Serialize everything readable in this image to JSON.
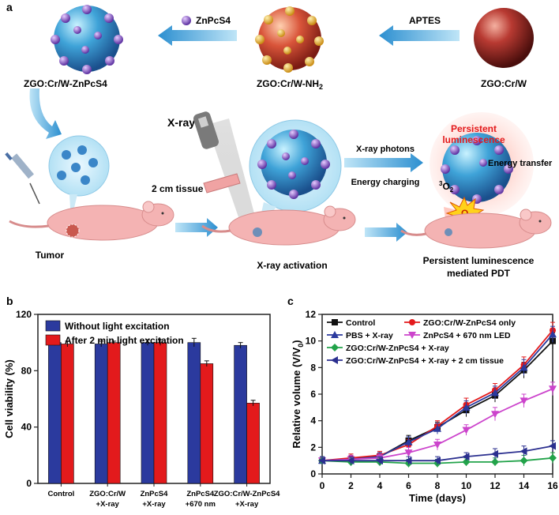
{
  "panel_a": {
    "label": "a",
    "zgo_crw": "ZGO:Cr/W",
    "zgo_nh2": "ZGO:Cr/W-NH",
    "nh2_sub": "2",
    "zgo_znpcs4": "ZGO:Cr/W-ZnPcS4",
    "aptes": "APTES",
    "znpcs4": "ZnPcS4",
    "xray": "X-ray",
    "tissue": "2 cm tissue",
    "xray_photons": "X-ray photons",
    "energy_charging": "Energy charging",
    "persistent_line1": "Persistent",
    "persistent_line2": "luminescence",
    "energy_transfer": "Energy transfer",
    "o2_triplet_sup": "3",
    "o2_triplet": "O",
    "o2_triplet_sub": "2",
    "o2_singlet": "O",
    "o2_singlet_sub": "2",
    "tumor": "Tumor",
    "xray_activation": "X-ray activation",
    "pdt_line1": "Persistent luminescence",
    "pdt_line2": "mediated PDT"
  },
  "chart_data": [
    {
      "panel": "b",
      "type": "bar",
      "ylabel": "Cell viability (%)",
      "ylim": [
        0,
        120
      ],
      "yticks": [
        0,
        40,
        80,
        120
      ],
      "categories": [
        [
          "Control"
        ],
        [
          "ZGO:Cr/W",
          "+X-ray"
        ],
        [
          "ZnPcS4",
          "+X-ray"
        ],
        [
          "ZnPcS4",
          "+670 nm"
        ],
        [
          "ZGO:Cr/W-ZnPcS4",
          "+X-ray"
        ]
      ],
      "series": [
        {
          "name": "Without light excitation",
          "color": "#2b3a9e",
          "values": [
            100,
            99,
            100,
            100,
            98
          ],
          "errors": [
            2,
            2,
            2,
            3,
            2
          ]
        },
        {
          "name": "After 2 min light excitation",
          "color": "#e31a1c",
          "values": [
            99,
            100,
            100,
            85,
            57
          ],
          "errors": [
            2,
            1,
            2,
            2,
            2
          ]
        }
      ],
      "legend": "top-left"
    },
    {
      "panel": "c",
      "type": "line",
      "xlabel": "Time (days)",
      "ylabel_main": "Relative volume (V/V",
      "ylabel_sub": "0",
      "ylabel_end": ")",
      "xlim": [
        0,
        16
      ],
      "ylim": [
        0,
        12
      ],
      "xticks": [
        0,
        2,
        4,
        6,
        8,
        10,
        12,
        14,
        16
      ],
      "yticks": [
        0,
        2,
        4,
        6,
        8,
        10,
        12
      ],
      "x": [
        0,
        2,
        4,
        6,
        8,
        10,
        12,
        14,
        16
      ],
      "series": [
        {
          "name": "Control",
          "color": "#111111",
          "marker": "square",
          "values": [
            1.0,
            1.1,
            1.3,
            2.5,
            3.5,
            4.8,
            5.9,
            7.8,
            10.0
          ],
          "errors": [
            0.3,
            0.3,
            0.3,
            0.4,
            0.4,
            0.5,
            0.5,
            0.6,
            0.6
          ]
        },
        {
          "name": "ZGO:Cr/W-ZnPcS4 only",
          "color": "#e31a1c",
          "marker": "circle",
          "values": [
            1.0,
            1.2,
            1.4,
            2.2,
            3.6,
            5.2,
            6.3,
            8.2,
            10.8
          ],
          "errors": [
            0.3,
            0.3,
            0.3,
            0.4,
            0.4,
            0.5,
            0.5,
            0.6,
            0.6
          ]
        },
        {
          "name": "PBS + X-ray",
          "color": "#2b3a9e",
          "marker": "triangle-up",
          "values": [
            1.0,
            1.1,
            1.3,
            2.4,
            3.4,
            5.0,
            6.1,
            8.0,
            10.5
          ],
          "errors": [
            0.3,
            0.3,
            0.3,
            0.4,
            0.4,
            0.5,
            0.5,
            0.6,
            0.6
          ]
        },
        {
          "name": "ZnPcS4 + 670 nm LED",
          "color": "#cc44cc",
          "marker": "triangle-down",
          "values": [
            1.0,
            1.1,
            1.2,
            1.6,
            2.2,
            3.3,
            4.5,
            5.5,
            6.4
          ],
          "errors": [
            0.3,
            0.3,
            0.3,
            0.4,
            0.4,
            0.4,
            0.5,
            0.5,
            0.5
          ]
        },
        {
          "name": "ZGO:Cr/W-ZnPcS4 + X-ray",
          "color": "#22a34a",
          "marker": "diamond",
          "values": [
            1.0,
            0.9,
            0.9,
            0.8,
            0.8,
            0.9,
            0.9,
            1.0,
            1.2
          ],
          "errors": [
            0.3,
            0.3,
            0.3,
            0.3,
            0.3,
            0.3,
            0.3,
            0.4,
            0.4
          ]
        },
        {
          "name": "ZGO:Cr/W-ZnPcS4 + X-ray + 2 cm tissue",
          "color": "#2b2f8f",
          "marker": "triangle-left",
          "values": [
            1.0,
            1.0,
            1.0,
            1.0,
            1.0,
            1.3,
            1.5,
            1.7,
            2.1
          ],
          "errors": [
            0.3,
            0.3,
            0.3,
            0.3,
            0.3,
            0.3,
            0.4,
            0.4,
            0.4
          ]
        }
      ],
      "legend": "top-left"
    }
  ]
}
